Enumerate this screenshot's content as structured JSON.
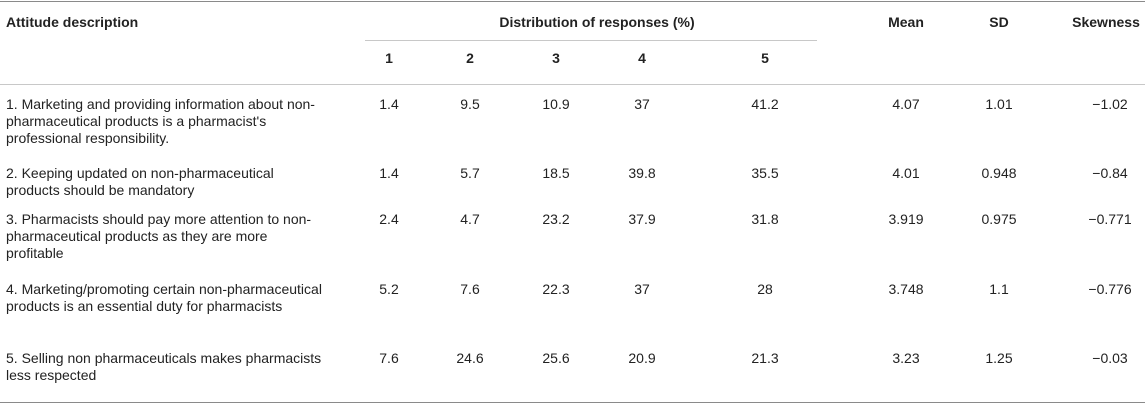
{
  "headers": {
    "attitude": "Attitude description",
    "distribution": "Distribution of responses (%)",
    "mean": "Mean",
    "sd": "SD",
    "skewness": "Skewness",
    "scale": [
      "1",
      "2",
      "3",
      "4",
      "5"
    ]
  },
  "rows": [
    {
      "desc": "1. Marketing and providing information about non-pharmaceutical products is a pharmacist's professional responsibility.",
      "d": [
        "1.4",
        "9.5",
        "10.9",
        "37",
        "41.2"
      ],
      "mean": "4.07",
      "sd": "1.01",
      "skew": "−1.02"
    },
    {
      "desc": "2. Keeping updated on non-pharmaceutical products should be mandatory",
      "d": [
        "1.4",
        "5.7",
        "18.5",
        "39.8",
        "35.5"
      ],
      "mean": "4.01",
      "sd": "0.948",
      "skew": "−0.84"
    },
    {
      "desc": "3. Pharmacists should pay more attention to non-pharmaceutical products as they are more profitable",
      "d": [
        "2.4",
        "4.7",
        "23.2",
        "37.9",
        "31.8"
      ],
      "mean": "3.919",
      "sd": "0.975",
      "skew": "−0.771"
    },
    {
      "desc": "4. Marketing/promoting certain non-pharmaceutical products is an essential duty for pharmacists",
      "d": [
        "5.2",
        "7.6",
        "22.3",
        "37",
        "28"
      ],
      "mean": "3.748",
      "sd": "1.1",
      "skew": "−0.776"
    },
    {
      "desc": "5. Selling non pharmaceuticals makes pharmacists less respected",
      "d": [
        "7.6",
        "24.6",
        "25.6",
        "20.9",
        "21.3"
      ],
      "mean": "3.23",
      "sd": "1.25",
      "skew": "−0.03"
    }
  ]
}
